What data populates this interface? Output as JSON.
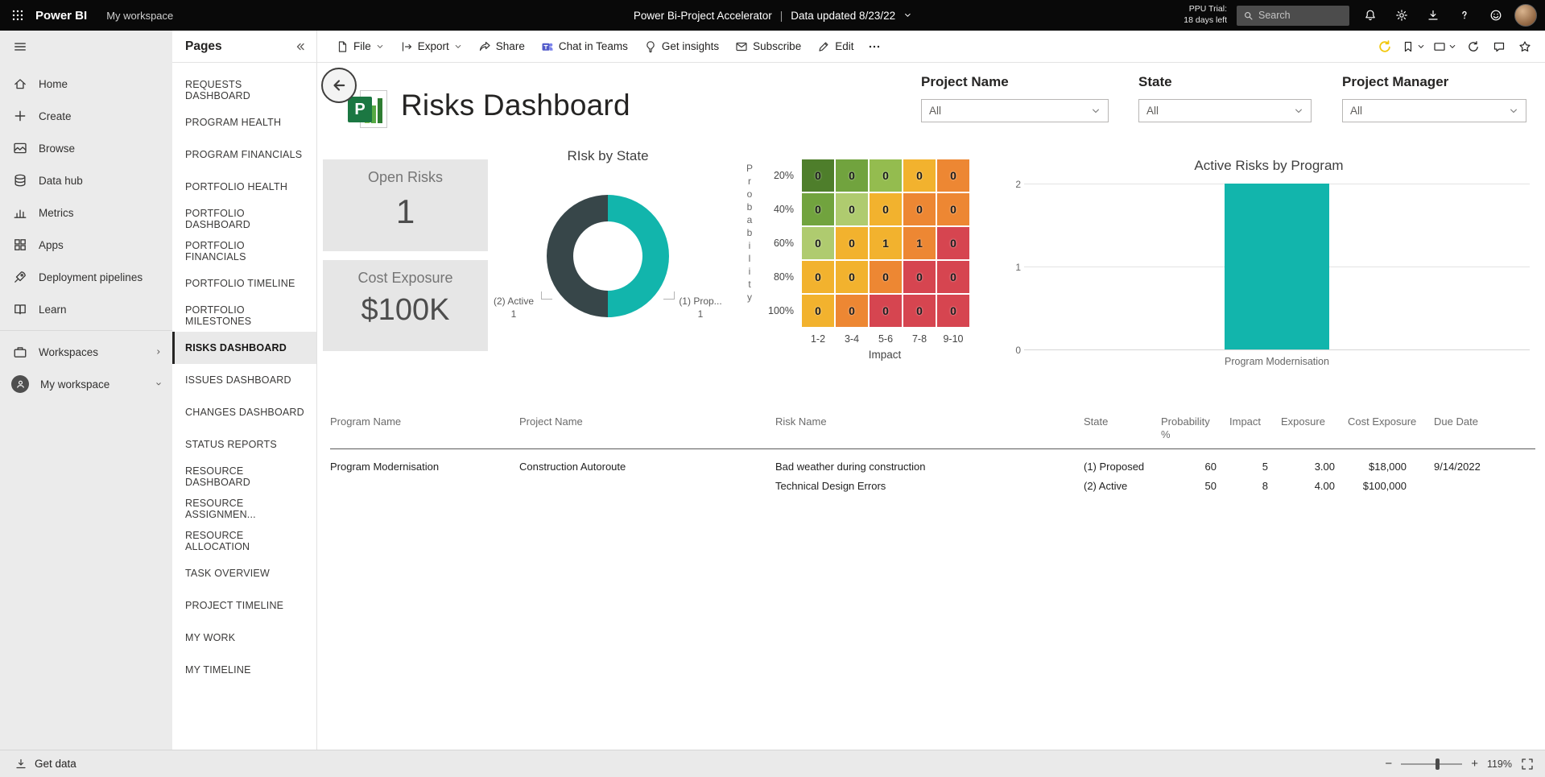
{
  "top_bar": {
    "app_name": "Power BI",
    "workspace_label": "My workspace",
    "report_breadcrumb": "Power Bi-Project Accelerator",
    "separator": "|",
    "data_updated": "Data updated 8/23/22",
    "trial_line1": "PPU Trial:",
    "trial_line2": "18 days left",
    "search_placeholder": "Search"
  },
  "nav_rail": {
    "items": [
      {
        "label": "Home"
      },
      {
        "label": "Create"
      },
      {
        "label": "Browse"
      },
      {
        "label": "Data hub"
      },
      {
        "label": "Metrics"
      },
      {
        "label": "Apps"
      },
      {
        "label": "Deployment pipelines"
      },
      {
        "label": "Learn"
      }
    ],
    "workspaces_label": "Workspaces",
    "my_workspace_label": "My workspace",
    "get_data_label": "Get data"
  },
  "pages_panel": {
    "title": "Pages",
    "items": [
      "REQUESTS DASHBOARD",
      "PROGRAM HEALTH",
      "PROGRAM FINANCIALS",
      "PORTFOLIO HEALTH",
      "PORTFOLIO DASHBOARD",
      "PORTFOLIO FINANCIALS",
      "PORTFOLIO TIMELINE",
      "PORTFOLIO MILESTONES",
      "RISKS DASHBOARD",
      "ISSUES DASHBOARD",
      "CHANGES DASHBOARD",
      "STATUS REPORTS",
      "RESOURCE DASHBOARD",
      "RESOURCE ASSIGNMEN...",
      "RESOURCE ALLOCATION",
      "TASK OVERVIEW",
      "PROJECT TIMELINE",
      "MY WORK",
      "MY TIMELINE"
    ],
    "selected": "RISKS DASHBOARD"
  },
  "toolbar": {
    "file_label": "File",
    "export_label": "Export",
    "share_label": "Share",
    "chat_label": "Chat in Teams",
    "insights_label": "Get insights",
    "subscribe_label": "Subscribe",
    "edit_label": "Edit"
  },
  "report": {
    "title": "Risks Dashboard",
    "filters": [
      {
        "label": "Project Name",
        "value": "All"
      },
      {
        "label": "State",
        "value": "All"
      },
      {
        "label": "Project Manager",
        "value": "All"
      }
    ],
    "cards": [
      {
        "label": "Open Risks",
        "value": "1"
      },
      {
        "label": "Cost Exposure",
        "value": "$100K"
      }
    ]
  },
  "chart_data": [
    {
      "type": "pie",
      "subtype": "donut",
      "title": "RIsk by State",
      "slices": [
        {
          "label": "(1) Prop...",
          "value": 1,
          "color": "#12B5AC"
        },
        {
          "label": "(2) Active",
          "value": 1,
          "color": "#374649"
        }
      ],
      "callouts": {
        "left_label": "(2) Active",
        "left_value": "1",
        "right_label": "(1) Prop...",
        "right_value": "1"
      }
    },
    {
      "type": "heatmap",
      "title": "Risk probability / impact matrix",
      "xlabel": "Impact",
      "ylabel": "Probability",
      "row_labels": [
        "20%",
        "40%",
        "60%",
        "80%",
        "100%"
      ],
      "col_labels": [
        "1-2",
        "3-4",
        "5-6",
        "7-8",
        "9-10"
      ],
      "values": [
        [
          0,
          0,
          0,
          0,
          0
        ],
        [
          0,
          0,
          0,
          0,
          0
        ],
        [
          0,
          0,
          1,
          1,
          0
        ],
        [
          0,
          0,
          0,
          0,
          0
        ],
        [
          0,
          0,
          0,
          0,
          0
        ]
      ],
      "cell_colors": [
        [
          "#4E7E2B",
          "#71A33E",
          "#94BC4F",
          "#F2B22E",
          "#ED8733"
        ],
        [
          "#71A33E",
          "#AFCB6F",
          "#F2B22E",
          "#ED8733",
          "#ED8733"
        ],
        [
          "#AFCB6F",
          "#F2B22E",
          "#F2B22E",
          "#ED8733",
          "#D64550"
        ],
        [
          "#F2B22E",
          "#F2B22E",
          "#ED8733",
          "#D64550",
          "#D64550"
        ],
        [
          "#F2B22E",
          "#ED8733",
          "#D64550",
          "#D64550",
          "#D64550"
        ]
      ]
    },
    {
      "type": "bar",
      "title": "Active Risks by Program",
      "categories": [
        "Program Modernisation"
      ],
      "values": [
        2
      ],
      "ylim": [
        0,
        2
      ],
      "yticks": [
        0,
        1,
        2
      ],
      "bar_color": "#12B5AC",
      "grid": true,
      "legend": false
    },
    {
      "type": "table",
      "columns": [
        "Program Name",
        "Project Name",
        "Risk Name",
        "State",
        "Probability %",
        "Impact",
        "Exposure",
        "Cost Exposure",
        "Due Date"
      ],
      "rows": [
        [
          "Program Modernisation",
          "Construction Autoroute",
          "Bad weather during construction",
          "(1) Proposed",
          "60",
          "5",
          "3.00",
          "$18,000",
          "9/14/2022"
        ],
        [
          "",
          "",
          "Technical Design Errors",
          "(2) Active",
          "50",
          "8",
          "4.00",
          "$100,000",
          ""
        ]
      ]
    }
  ],
  "bottom_bar": {
    "get_data_label": "Get data",
    "zoom_out": "−",
    "zoom_in": "+",
    "zoom_level": "119%"
  }
}
